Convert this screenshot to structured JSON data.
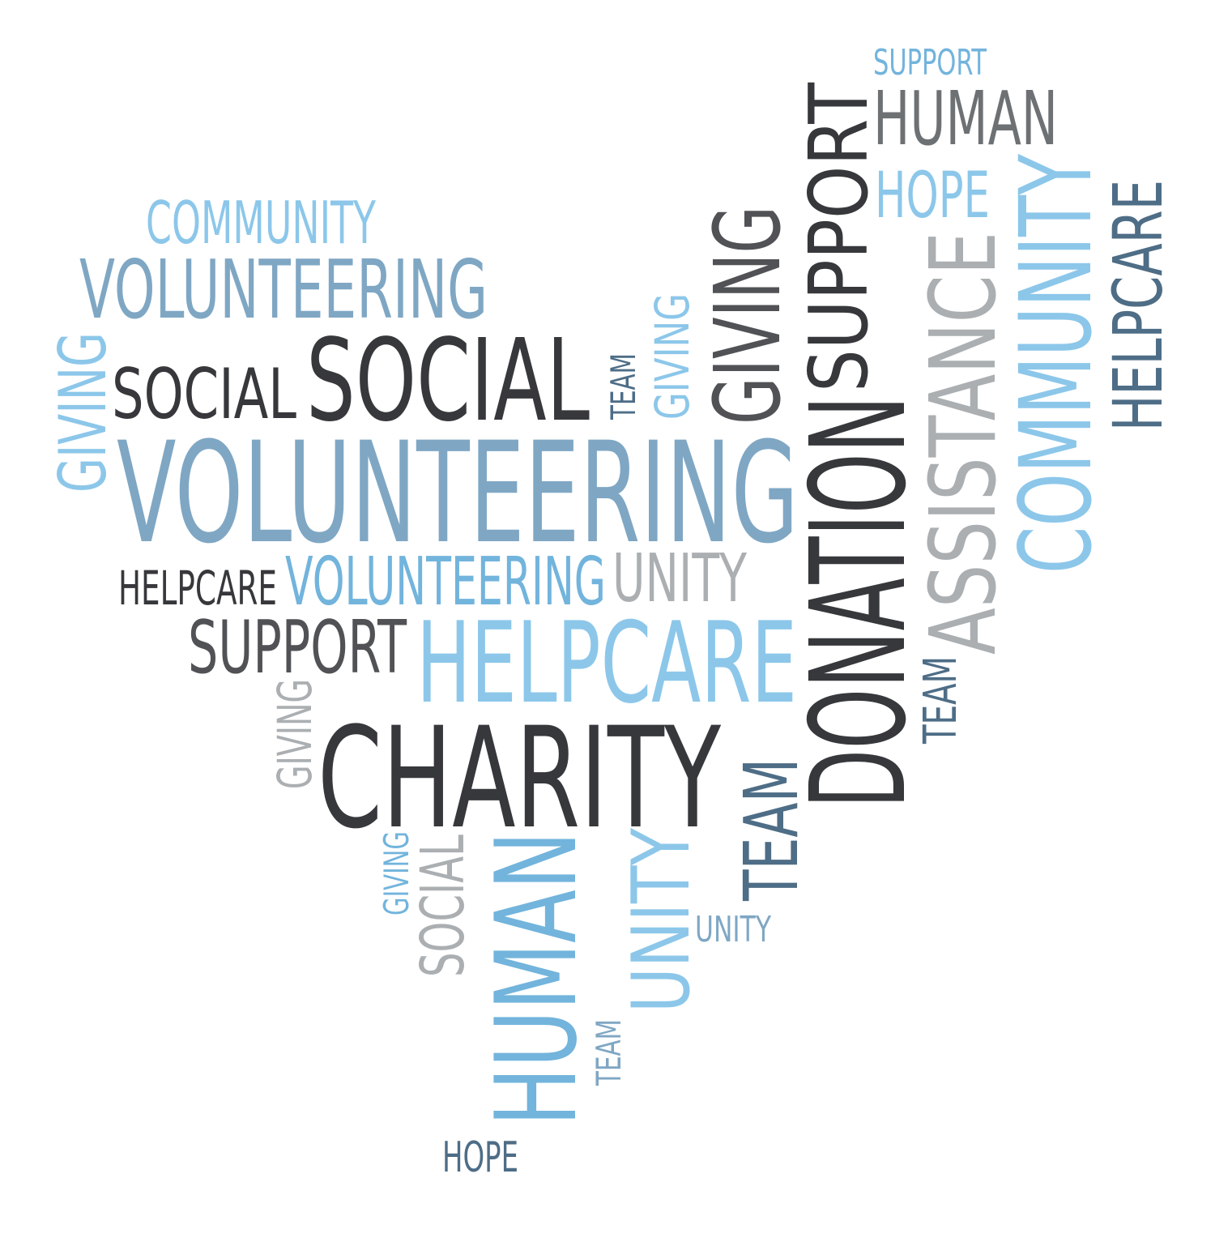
{
  "palette": {
    "dark": "#36383b",
    "darkgray": "#505255",
    "gray": "#6e7174",
    "steel": "#4e6d86",
    "midblue": "#7fa7c4",
    "lightblue": "#8cc7ea",
    "sky": "#72b4dc",
    "silver": "#abafb2"
  },
  "words": [
    {
      "id": "support-top",
      "text": "SUPPORT",
      "color": "#72b4dc"
    },
    {
      "id": "human-top",
      "text": "HUMAN",
      "color": "#6e7174"
    },
    {
      "id": "hope-top",
      "text": "HOPE",
      "color": "#8cc7ea"
    },
    {
      "id": "support-vertical",
      "text": "SUPPORT",
      "color": "#36383b"
    },
    {
      "id": "giving-vertical-dark",
      "text": "GIVING",
      "color": "#505255"
    },
    {
      "id": "giving-vertical-light",
      "text": "GIVING",
      "color": "#8cc7ea"
    },
    {
      "id": "team-vertical-small",
      "text": "TEAM",
      "color": "#4e6d86"
    },
    {
      "id": "assistance-vertical",
      "text": "ASSISTANCE",
      "color": "#abafb2"
    },
    {
      "id": "community-vertical",
      "text": "COMMUNITY",
      "color": "#8cc7ea"
    },
    {
      "id": "helpcare-vertical-right",
      "text": "HELPCARE",
      "color": "#4e6d86"
    },
    {
      "id": "community-top-left",
      "text": "COMMUNITY",
      "color": "#8cc7ea"
    },
    {
      "id": "volunteering-upper",
      "text": "VOLUNTEERING",
      "color": "#7fa7c4"
    },
    {
      "id": "giving-vertical-left",
      "text": "GIVING",
      "color": "#8cc7ea"
    },
    {
      "id": "social-small",
      "text": "SOCIAL",
      "color": "#36383b"
    },
    {
      "id": "social-large",
      "text": "SOCIAL",
      "color": "#36383b"
    },
    {
      "id": "volunteering-main",
      "text": "VOLUNTEERING",
      "color": "#7fa7c4"
    },
    {
      "id": "donation-vertical",
      "text": "DONATION",
      "color": "#36383b"
    },
    {
      "id": "helpcare-small",
      "text": "HELPCARE",
      "color": "#36383b"
    },
    {
      "id": "volunteering-mid",
      "text": "VOLUNTEERING",
      "color": "#72b4dc"
    },
    {
      "id": "unity-mid",
      "text": "UNITY",
      "color": "#abafb2"
    },
    {
      "id": "support-mid",
      "text": "SUPPORT",
      "color": "#505255"
    },
    {
      "id": "helpcare-large",
      "text": "HELPCARE",
      "color": "#8cc7ea"
    },
    {
      "id": "team-vertical-right",
      "text": "TEAM",
      "color": "#4e6d86"
    },
    {
      "id": "giving-vertical-gray",
      "text": "GIVING",
      "color": "#abafb2"
    },
    {
      "id": "charity-main",
      "text": "CHARITY",
      "color": "#36383b"
    },
    {
      "id": "team-vertical-center",
      "text": "TEAM",
      "color": "#4e6d86"
    },
    {
      "id": "giving-vertical-bottom",
      "text": "GIVING",
      "color": "#72b4dc"
    },
    {
      "id": "social-vertical-bottom",
      "text": "SOCIAL",
      "color": "#abafb2"
    },
    {
      "id": "human-vertical-bottom",
      "text": "HUMAN",
      "color": "#72b4dc"
    },
    {
      "id": "unity-vertical-bottom",
      "text": "UNITY",
      "color": "#8cc7ea"
    },
    {
      "id": "unity-small-bottom",
      "text": "UNITY",
      "color": "#7fa7c4"
    },
    {
      "id": "team-vertical-bottom",
      "text": "TEAM",
      "color": "#7fa7c4"
    },
    {
      "id": "hope-bottom",
      "text": "HOPE",
      "color": "#4e6d86"
    }
  ]
}
